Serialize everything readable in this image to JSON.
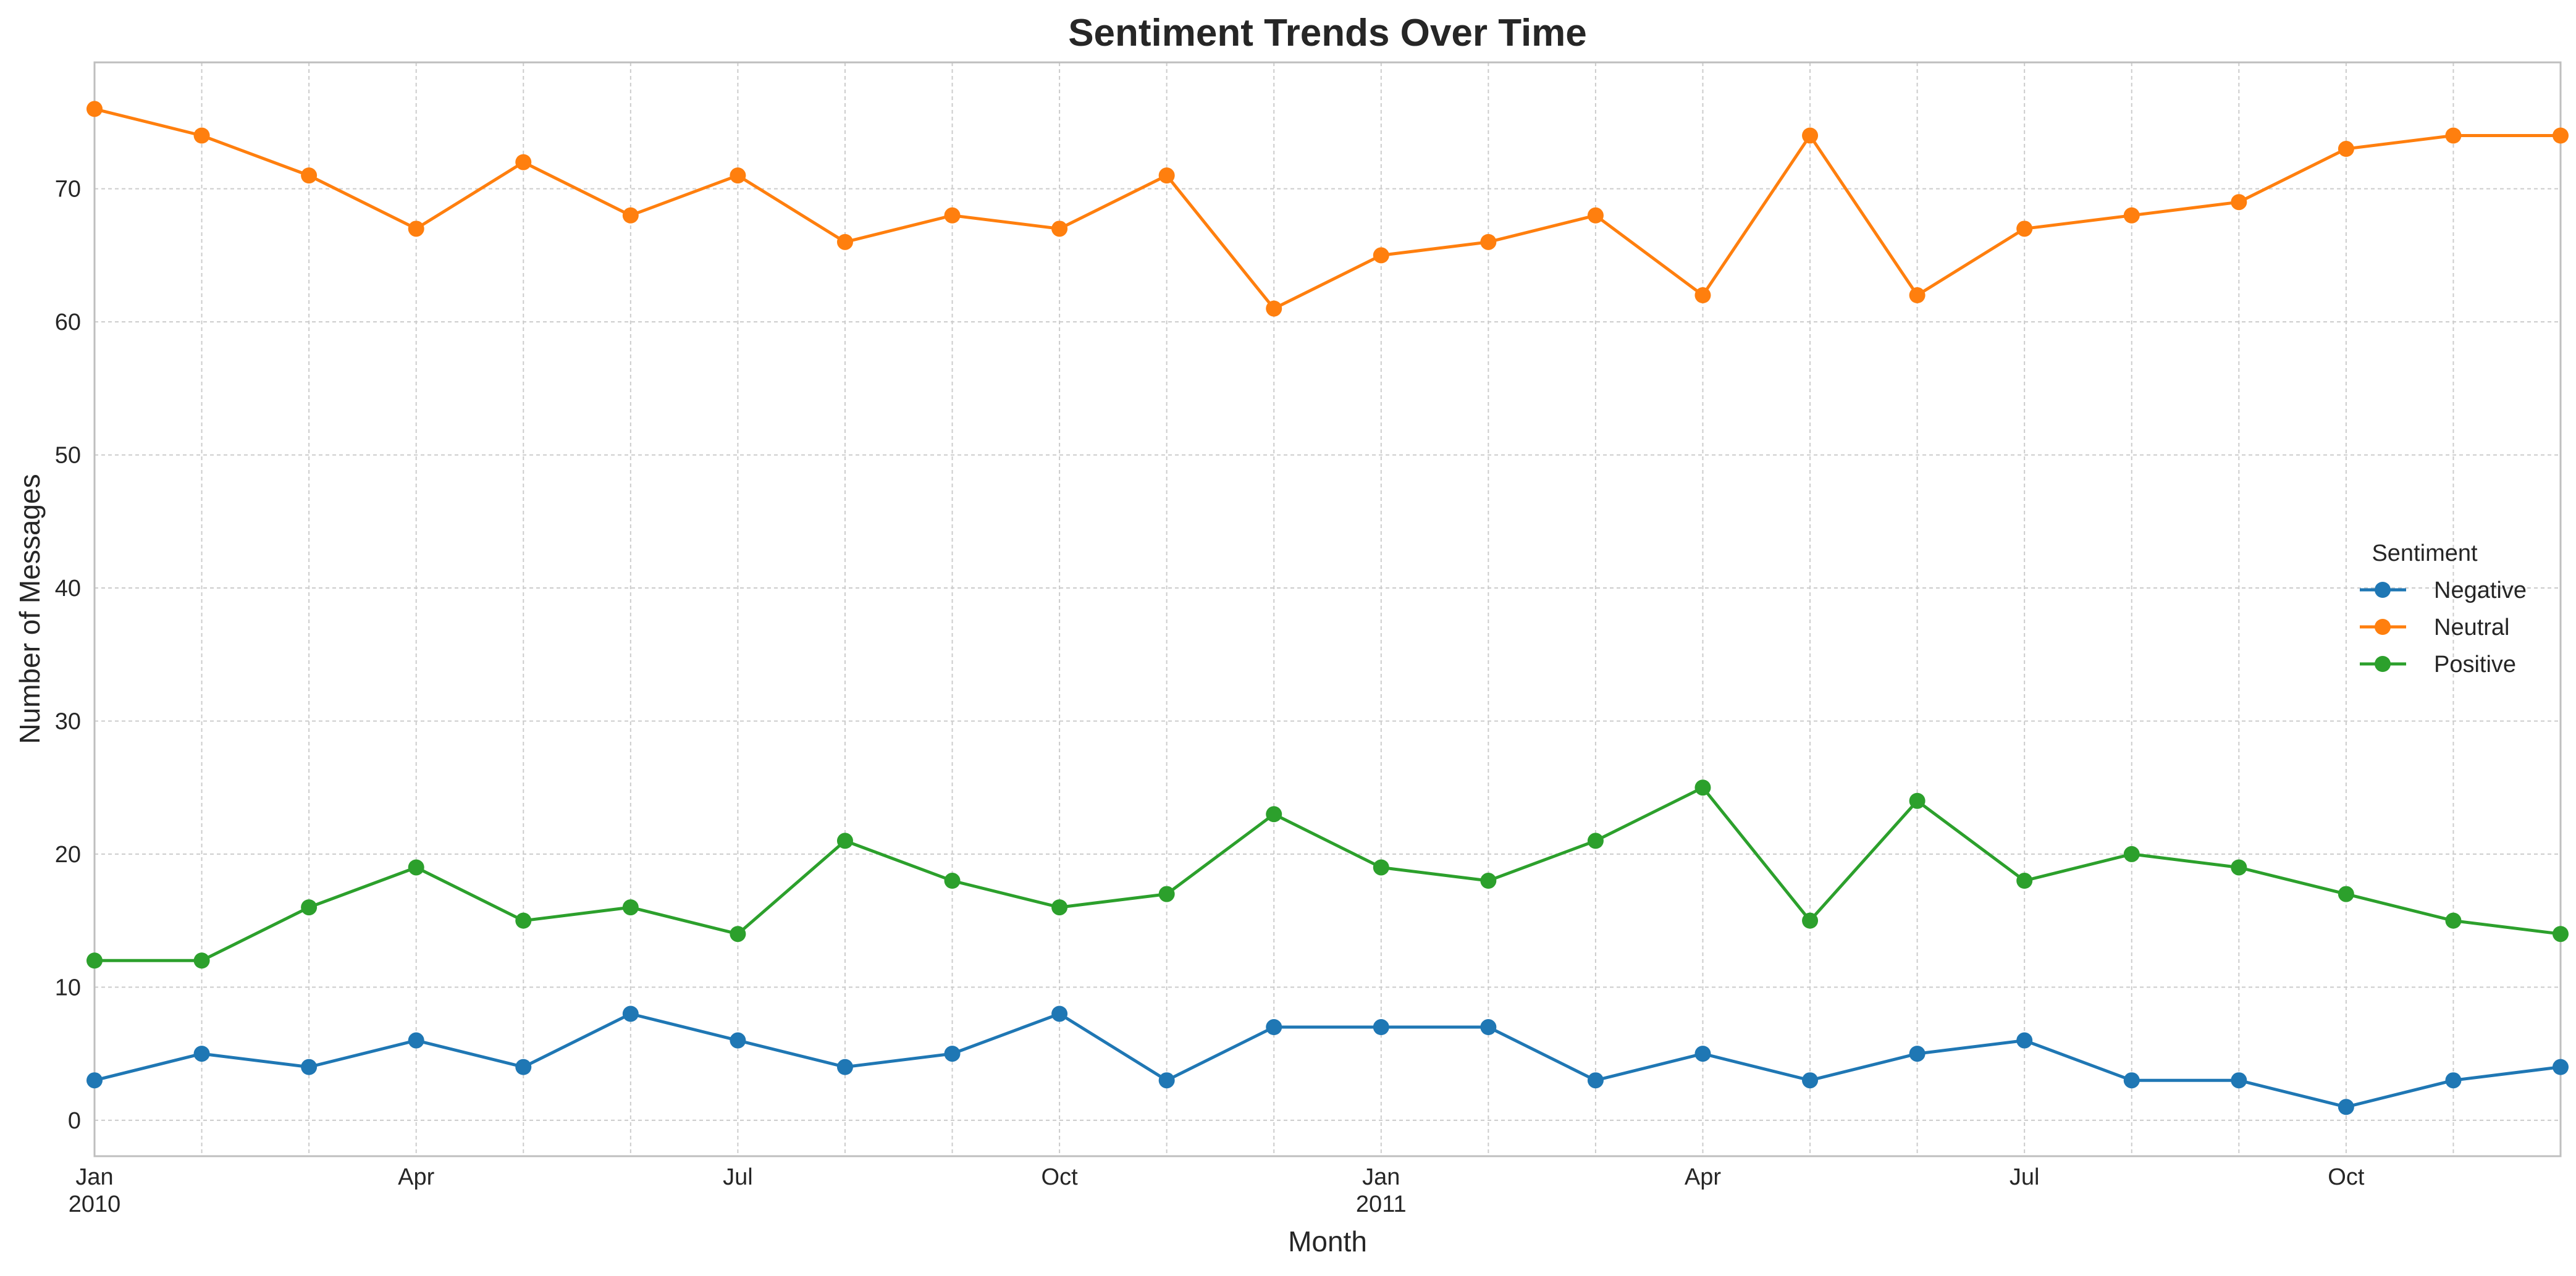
{
  "chart_data": {
    "type": "line",
    "title": "Sentiment Trends Over Time",
    "xlabel": "Month",
    "ylabel": "Number of Messages",
    "ylim": [
      -2.7,
      79.5
    ],
    "yticks": [
      0,
      10,
      20,
      30,
      40,
      50,
      60,
      70
    ],
    "x": [
      "2010-01",
      "2010-02",
      "2010-03",
      "2010-04",
      "2010-05",
      "2010-06",
      "2010-07",
      "2010-08",
      "2010-09",
      "2010-10",
      "2010-11",
      "2010-12",
      "2011-01",
      "2011-02",
      "2011-03",
      "2011-04",
      "2011-05",
      "2011-06",
      "2011-07",
      "2011-08",
      "2011-09",
      "2011-10",
      "2011-11",
      "2011-12"
    ],
    "xticks": [
      {
        "month": "2010-01",
        "label": "Jan",
        "year": "2010"
      },
      {
        "month": "2010-04",
        "label": "Apr",
        "year": ""
      },
      {
        "month": "2010-07",
        "label": "Jul",
        "year": ""
      },
      {
        "month": "2010-10",
        "label": "Oct",
        "year": ""
      },
      {
        "month": "2011-01",
        "label": "Jan",
        "year": "2011"
      },
      {
        "month": "2011-04",
        "label": "Apr",
        "year": ""
      },
      {
        "month": "2011-07",
        "label": "Jul",
        "year": ""
      },
      {
        "month": "2011-10",
        "label": "Oct",
        "year": ""
      }
    ],
    "grid": true,
    "legend": {
      "title": "Sentiment",
      "placement": "center-right"
    },
    "series": [
      {
        "name": "Negative",
        "color": "#1f77b4",
        "values": [
          3,
          5,
          4,
          6,
          4,
          8,
          6,
          4,
          5,
          8,
          3,
          7,
          7,
          7,
          3,
          5,
          3,
          5,
          6,
          3,
          3,
          1,
          3,
          4
        ]
      },
      {
        "name": "Neutral",
        "color": "#ff7f0e",
        "values": [
          76,
          74,
          71,
          67,
          72,
          68,
          71,
          66,
          68,
          67,
          71,
          61,
          65,
          66,
          68,
          62,
          74,
          62,
          67,
          68,
          69,
          73,
          74,
          74
        ]
      },
      {
        "name": "Positive",
        "color": "#2ca02c",
        "values": [
          12,
          12,
          16,
          19,
          15,
          16,
          14,
          21,
          18,
          16,
          17,
          23,
          19,
          18,
          21,
          25,
          15,
          24,
          18,
          20,
          19,
          17,
          15,
          14
        ]
      }
    ]
  }
}
